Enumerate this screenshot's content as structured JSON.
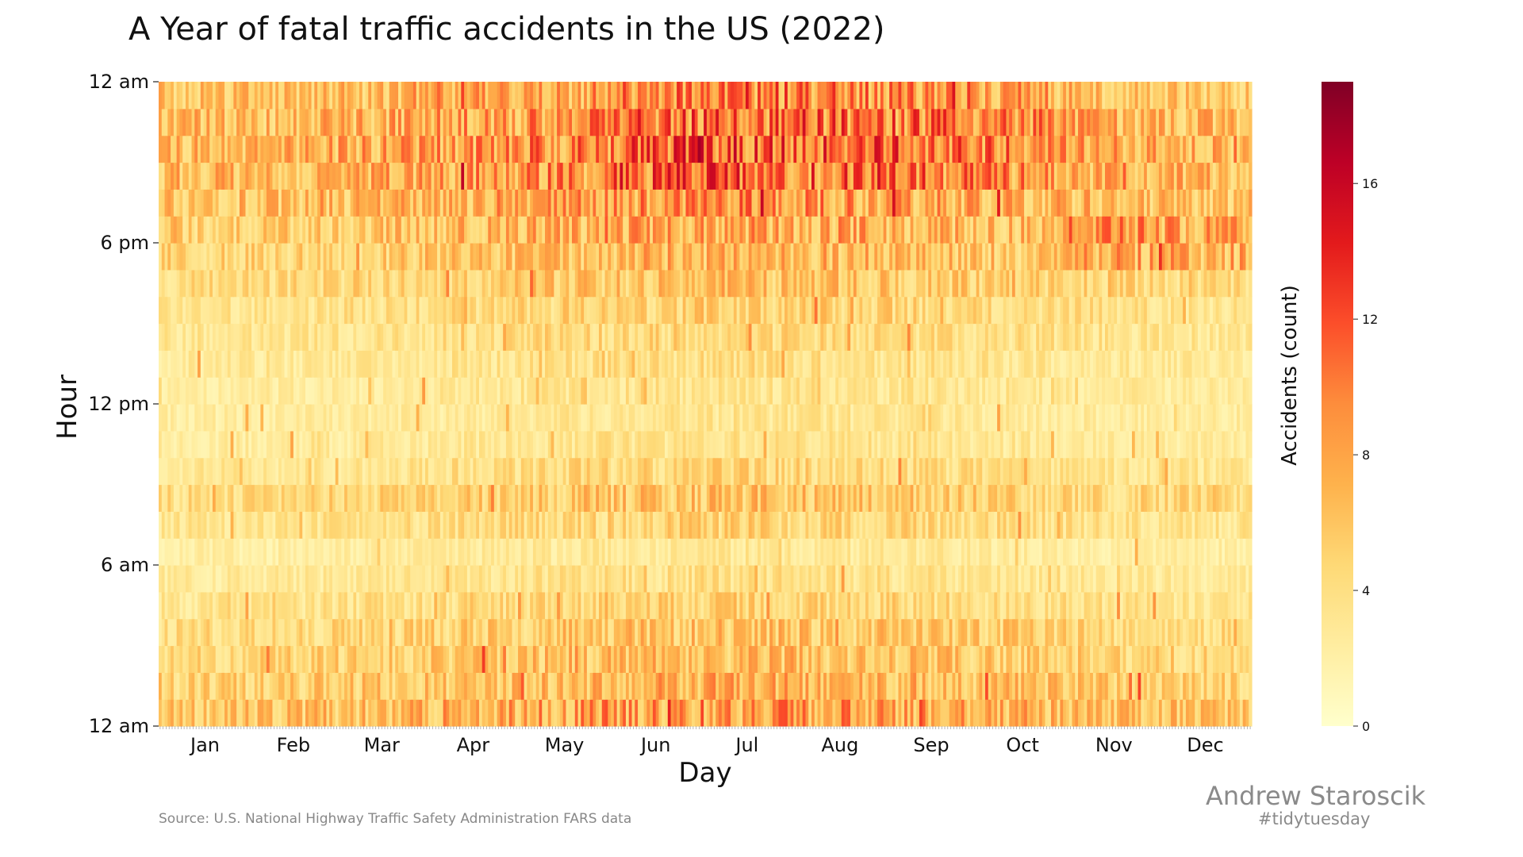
{
  "chart_data": {
    "type": "heatmap",
    "title": "A Year of fatal traffic accidents in the US (2022)",
    "xlabel": "Day",
    "ylabel": "Hour",
    "x_tick_labels": [
      "Jan",
      "Feb",
      "Mar",
      "Apr",
      "May",
      "Jun",
      "Jul",
      "Aug",
      "Sep",
      "Oct",
      "Nov",
      "Dec"
    ],
    "y_tick_labels": [
      "12 am",
      "6 pm",
      "12 pm",
      "6 am",
      "12 am"
    ],
    "n_days": 365,
    "n_hours": 24,
    "hourly_mean_accidents": [
      7.0,
      6.0,
      5.5,
      5.0,
      4.0,
      3.2,
      2.6,
      4.0,
      5.0,
      3.8,
      3.0,
      2.8,
      3.0,
      3.3,
      3.8,
      4.2,
      5.0,
      5.8,
      6.4,
      7.2,
      8.0,
      8.2,
      7.8,
      7.0
    ],
    "seasonal_pattern": "higher counts in summer and early autumn evenings; strong 5–7 pm peak in November–December",
    "colorbar": {
      "label": "Accidents (count)",
      "ticks": [
        0,
        4,
        8,
        12,
        16
      ],
      "range": [
        0,
        19
      ],
      "colormap": "YlOrRd",
      "colors": [
        "#ffffcc",
        "#ffeda0",
        "#fed976",
        "#feb24c",
        "#fd8d3c",
        "#fc4e2a",
        "#e31a1c",
        "#bd0026",
        "#800026"
      ]
    },
    "grid": false
  },
  "footer": {
    "source": "Source: U.S. National Highway Traffic Safety Administration FARS data",
    "author": "Andrew Staroscik",
    "hashtag": "#tidytuesday"
  }
}
